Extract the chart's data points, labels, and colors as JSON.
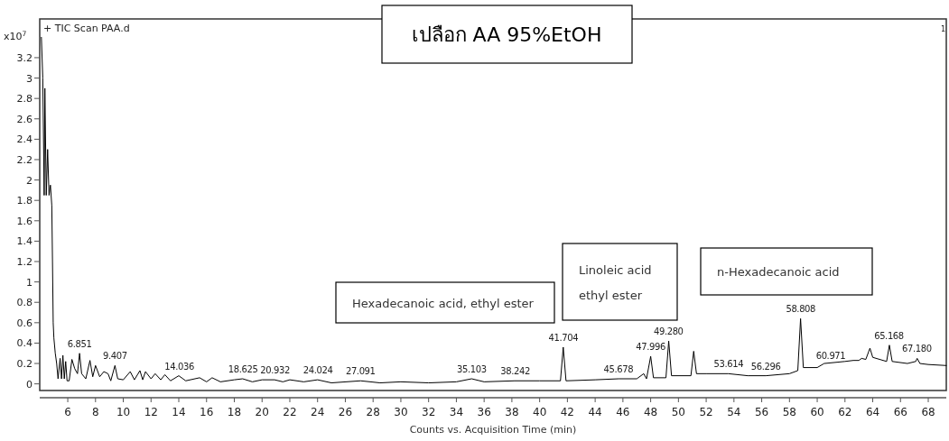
{
  "chart_data": {
    "type": "line",
    "title": "เปลือก AA 95%EtOH",
    "xlabel": "Counts vs. Acquisition Time (min)",
    "ylabel": "x10$^{7}$",
    "xlim": [
      3.98,
      69.3
    ],
    "ylim": [
      -0.065,
      3.58
    ],
    "xticks": [
      6,
      8,
      10,
      12,
      14,
      16,
      18,
      20,
      22,
      24,
      26,
      28,
      30,
      32,
      34,
      36,
      38,
      40,
      42,
      44,
      46,
      48,
      50,
      52,
      54,
      56,
      58,
      60,
      62,
      64,
      66,
      68
    ],
    "yticks": [
      0,
      0.2,
      0.4,
      0.6,
      0.8,
      1,
      1.2,
      1.4,
      1.6,
      1.8,
      2,
      2.2,
      2.4,
      2.6,
      2.8,
      3,
      3.2
    ],
    "grid": false,
    "series": [
      {
        "color": "#000000",
        "x": [
          4.1,
          4.2,
          4.3,
          4.35,
          4.45,
          4.55,
          4.65,
          4.75,
          4.85,
          4.9,
          4.95,
          5.0,
          5.1,
          5.2,
          5.3,
          5.45,
          5.55,
          5.65,
          5.75,
          5.85,
          5.95,
          6.1,
          6.3,
          6.5,
          6.7,
          6.85,
          7.0,
          7.3,
          7.6,
          7.8,
          8.0,
          8.3,
          8.6,
          8.9,
          9.1,
          9.4,
          9.6,
          10.0,
          10.5,
          10.8,
          11.2,
          11.4,
          11.6,
          12.0,
          12.3,
          12.7,
          13.0,
          13.4,
          14.0,
          14.5,
          15.5,
          16.0,
          16.4,
          17.0,
          18.0,
          18.6,
          19.3,
          20.0,
          20.9,
          21.5,
          22.0,
          23.0,
          24.0,
          25.0,
          27.1,
          28.5,
          30.0,
          32.0,
          34.0,
          35.1,
          36.0,
          38.2,
          40.0,
          41.5,
          41.7,
          41.9,
          44.0,
          45.7,
          47.0,
          47.5,
          47.7,
          48.0,
          48.2,
          49.1,
          49.3,
          49.5,
          50.9,
          51.1,
          51.3,
          52.0,
          53.6,
          55.0,
          56.3,
          58.0,
          58.6,
          58.8,
          59.0,
          60.0,
          60.5,
          62.0,
          62.6,
          63.0,
          63.2,
          63.5,
          63.8,
          64.0,
          65.0,
          65.2,
          65.4,
          66.5,
          67.1,
          67.2,
          67.4,
          68.0,
          69.3
        ],
        "values": [
          3.4,
          3.0,
          1.85,
          2.9,
          1.85,
          2.3,
          1.85,
          1.95,
          1.75,
          1.2,
          0.6,
          0.45,
          0.3,
          0.2,
          0.05,
          0.25,
          0.05,
          0.28,
          0.05,
          0.22,
          0.03,
          0.03,
          0.24,
          0.15,
          0.1,
          0.3,
          0.1,
          0.05,
          0.23,
          0.07,
          0.18,
          0.07,
          0.12,
          0.1,
          0.03,
          0.18,
          0.05,
          0.04,
          0.12,
          0.04,
          0.13,
          0.04,
          0.12,
          0.05,
          0.1,
          0.04,
          0.09,
          0.03,
          0.08,
          0.03,
          0.06,
          0.02,
          0.06,
          0.02,
          0.04,
          0.05,
          0.02,
          0.04,
          0.04,
          0.02,
          0.04,
          0.02,
          0.04,
          0.01,
          0.03,
          0.01,
          0.02,
          0.01,
          0.02,
          0.05,
          0.02,
          0.03,
          0.03,
          0.03,
          0.36,
          0.03,
          0.04,
          0.05,
          0.05,
          0.1,
          0.05,
          0.27,
          0.06,
          0.06,
          0.42,
          0.08,
          0.08,
          0.32,
          0.1,
          0.1,
          0.1,
          0.08,
          0.08,
          0.1,
          0.13,
          0.64,
          0.16,
          0.16,
          0.2,
          0.22,
          0.23,
          0.23,
          0.25,
          0.24,
          0.35,
          0.26,
          0.22,
          0.38,
          0.22,
          0.2,
          0.22,
          0.25,
          0.2,
          0.19,
          0.18
        ]
      }
    ],
    "annotations": [
      "+ TIC Scan PAA.d",
      "1",
      "Hexadecanoic acid, ethyl ester",
      "Linoleic acid ethyl ester",
      "n-Hexadecanoic acid",
      {
        "text": "6.851",
        "x": 6.851,
        "y": 0.3
      },
      {
        "text": "9.407",
        "x": 9.407,
        "y": 0.18
      },
      {
        "text": "14.036",
        "x": 14.036,
        "y": 0.08
      },
      {
        "text": "18.625",
        "x": 18.625,
        "y": 0.05
      },
      {
        "text": "20.932",
        "x": 20.932,
        "y": 0.04
      },
      {
        "text": "24.024",
        "x": 24.024,
        "y": 0.04
      },
      {
        "text": "27.091",
        "x": 27.091,
        "y": 0.03
      },
      {
        "text": "35.103",
        "x": 35.103,
        "y": 0.05
      },
      {
        "text": "38.242",
        "x": 38.242,
        "y": 0.03
      },
      {
        "text": "41.704",
        "x": 41.704,
        "y": 0.36
      },
      {
        "text": "45.678",
        "x": 45.678,
        "y": 0.05
      },
      {
        "text": "47.996",
        "x": 47.996,
        "y": 0.27
      },
      {
        "text": "49.280",
        "x": 49.28,
        "y": 0.42
      },
      {
        "text": "53.614",
        "x": 53.614,
        "y": 0.1
      },
      {
        "text": "56.296",
        "x": 56.296,
        "y": 0.08
      },
      {
        "text": "58.808",
        "x": 58.808,
        "y": 0.64
      },
      {
        "text": "60.971",
        "x": 60.971,
        "y": 0.18
      },
      {
        "text": "65.168",
        "x": 65.168,
        "y": 0.38
      },
      {
        "text": "67.180",
        "x": 67.18,
        "y": 0.25
      }
    ]
  }
}
